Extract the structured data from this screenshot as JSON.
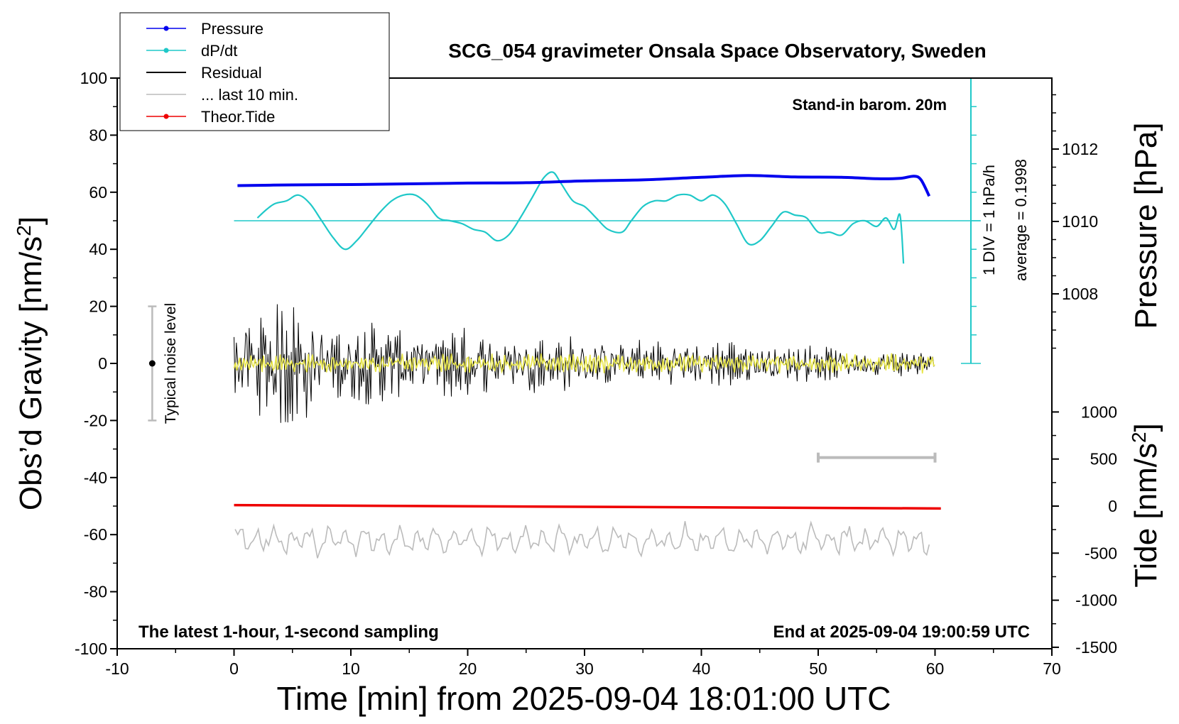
{
  "chart_data": {
    "type": "line",
    "title": "SCG_054 gravimeter Onsala Space Observatory, Sweden",
    "xlabel": "Time [min] from 2025-09-04 18:01:00 UTC",
    "xlim": [
      -10,
      70
    ],
    "xticks": [
      "-10",
      "0",
      "10",
      "20",
      "30",
      "40",
      "50",
      "60",
      "70"
    ],
    "y_left": {
      "label_main": "Obs’d Gravity [nm/s",
      "label_sup": "2",
      "label_end": "]",
      "ylim": [
        -100,
        100
      ],
      "ticks": [
        "100",
        "80",
        "60",
        "40",
        "20",
        "0",
        "-20",
        "-40",
        "-60",
        "-80",
        "-100"
      ]
    },
    "y_pressure": {
      "label": "Pressure [hPa]",
      "ticks": [
        {
          "label": "1012",
          "value": 1012
        },
        {
          "label": "1010",
          "value": 1010
        },
        {
          "label": "1008",
          "value": 1008
        }
      ]
    },
    "y_tide": {
      "label_main": "Tide [nm/s",
      "label_sup": "2",
      "label_end": "]",
      "ticks": [
        {
          "label": "1000",
          "value": 1000
        },
        {
          "label": "500",
          "value": 500
        },
        {
          "label": "0",
          "value": 0
        },
        {
          "label": "-500",
          "value": -500
        },
        {
          "label": "-1000",
          "value": -1000
        },
        {
          "label": "-1500",
          "value": -1500
        }
      ]
    },
    "legend": {
      "placement": "top-left",
      "entries": [
        {
          "label": "Pressure",
          "color": "#0000ee",
          "marker": true
        },
        {
          "label": "dP/dt",
          "color": "#1fc8c8",
          "marker": true
        },
        {
          "label": "Residual",
          "color": "#000000",
          "marker": false
        },
        {
          "label": "... last 10 min.",
          "color": "#bbbbbb",
          "marker": false
        },
        {
          "label": "Theor.Tide",
          "color": "#ee0000",
          "marker": true
        }
      ]
    },
    "annotations": {
      "barometer": "Stand-in barom. 20m",
      "latest": "The latest 1-hour, 1-second sampling",
      "end": "End at 2025-09-04 19:00:59 UTC",
      "noise": "Typical noise level",
      "dpdt_scale": "1 DIV = 1 hPa/h",
      "dpdt_average": "average = 0.1998"
    },
    "noise_bar": {
      "x": -7,
      "range": [
        -20,
        20
      ],
      "center": 0
    },
    "gray_scale_bar": {
      "x": [
        50,
        60
      ],
      "gravity_level": -33
    },
    "pressure_series": {
      "name": "Pressure",
      "color": "#0000ee",
      "x": [
        0.3,
        5,
        10,
        15,
        20,
        25,
        30,
        35,
        40,
        44,
        48,
        52,
        55,
        57,
        58.2,
        58.8,
        59.5
      ],
      "hPa": [
        1010.99,
        1011.01,
        1011.02,
        1011.04,
        1011.06,
        1011.07,
        1011.12,
        1011.15,
        1011.22,
        1011.27,
        1011.23,
        1011.22,
        1011.18,
        1011.19,
        1011.25,
        1011.15,
        1010.7
      ]
    },
    "dpdt_series": {
      "name": "dP/dt",
      "color": "#1fc8c8",
      "zero_gravity_level": 50,
      "x": [
        2,
        2.8,
        3.5,
        4.5,
        5.5,
        6.5,
        7.5,
        8.5,
        9.5,
        10.5,
        11.5,
        12.5,
        13.5,
        14.5,
        15.5,
        16.5,
        17.5,
        18.5,
        19.5,
        20.5,
        21.5,
        22.5,
        23.5,
        24.5,
        25.5,
        26.5,
        27.3,
        28,
        29,
        30,
        31,
        32,
        33.2,
        34,
        35,
        36,
        37,
        38,
        39,
        40,
        41,
        42,
        43,
        44,
        45,
        46,
        47,
        48,
        49,
        50,
        51,
        52,
        53,
        54,
        55,
        55.8,
        56.5,
        57,
        57.3
      ],
      "gravity": [
        51,
        54,
        56,
        57,
        59,
        56,
        50,
        44,
        40,
        43,
        48,
        53,
        57,
        59,
        59,
        56,
        51,
        50,
        49,
        47,
        46,
        43,
        45,
        51,
        58,
        65,
        67,
        63,
        57,
        55,
        51,
        47,
        46,
        50,
        55,
        57,
        57,
        59,
        59,
        57,
        59,
        56,
        49,
        42,
        43,
        48,
        53,
        52,
        51,
        46,
        46,
        45,
        49,
        50,
        48,
        51,
        47,
        52,
        35
      ]
    },
    "residual_series": {
      "name": "Residual",
      "color": "#000000",
      "x_range": [
        0,
        60
      ],
      "envelope": {
        "x": [
          0,
          5,
          10,
          15,
          20,
          25,
          30,
          35,
          40,
          45,
          50,
          55,
          60
        ],
        "amplitude": [
          14,
          18,
          12,
          10,
          10,
          9,
          8,
          7,
          7,
          6,
          5,
          4,
          3
        ]
      }
    },
    "yellow_series": {
      "color": "#e8e64a",
      "amplitude": 3
    },
    "last10_series": {
      "name": "... last 10 min.",
      "color": "#bbbbbb",
      "x_range": [
        0,
        60
      ],
      "gravity_center": -62,
      "amplitude": 3
    },
    "tide_series": {
      "name": "Theor.Tide",
      "color": "#ee0000",
      "x": [
        0,
        60.5
      ],
      "tide": [
        10,
        -25
      ]
    },
    "grid": false
  }
}
